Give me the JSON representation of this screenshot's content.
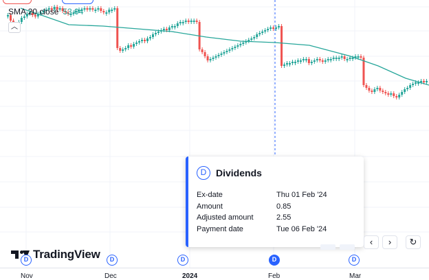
{
  "legend": {
    "indicator": "SMA 20 close",
    "value": "53.04"
  },
  "time_axis": [
    {
      "label": "Nov",
      "bold": false
    },
    {
      "label": "Dec",
      "bold": false
    },
    {
      "label": "2024",
      "bold": true
    },
    {
      "label": "Feb",
      "bold": false
    },
    {
      "label": "Mar",
      "bold": false
    }
  ],
  "brand": {
    "name": "TradingView"
  },
  "dividend_marker": "D",
  "tooltip": {
    "badge": "D",
    "title": "Dividends",
    "rows": [
      {
        "key": "Ex-date",
        "value": "Thu 01 Feb '24"
      },
      {
        "key": "Amount",
        "value": "0.85"
      },
      {
        "key": "Adjusted amount",
        "value": "2.55"
      },
      {
        "key": "Payment date",
        "value": "Tue 06 Feb '24"
      }
    ]
  },
  "nav": {
    "back": "‹",
    "forward": "›",
    "reset": "↻"
  },
  "colors": {
    "up": "#26a69a",
    "down": "#ef5350",
    "sma": "#26a69a",
    "accent": "#2962ff"
  },
  "icons": {
    "collapse": "chevron-up-icon",
    "reset": "reset-icon"
  }
}
